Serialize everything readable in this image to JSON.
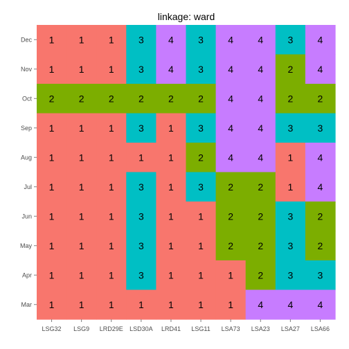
{
  "chart_data": {
    "type": "heatmap",
    "title": "linkage: ward",
    "xlabel": "",
    "ylabel": "",
    "grid": true,
    "x_categories": [
      "LSG32",
      "LSG9",
      "LRD29E",
      "LSD30A",
      "LRD41",
      "LSG11",
      "LSA73",
      "LSA23",
      "LSA27",
      "LSA66"
    ],
    "y_categories": [
      "Dec",
      "Nov",
      "Oct",
      "Sep",
      "Aug",
      "Jul",
      "Jun",
      "May",
      "Apr",
      "Mar"
    ],
    "values": [
      [
        1,
        1,
        1,
        3,
        4,
        3,
        4,
        4,
        3,
        4
      ],
      [
        1,
        1,
        1,
        3,
        4,
        3,
        4,
        4,
        2,
        4
      ],
      [
        2,
        2,
        2,
        2,
        2,
        2,
        4,
        4,
        2,
        2
      ],
      [
        1,
        1,
        1,
        3,
        1,
        3,
        4,
        4,
        3,
        3
      ],
      [
        1,
        1,
        1,
        1,
        1,
        2,
        4,
        4,
        1,
        4
      ],
      [
        1,
        1,
        1,
        3,
        1,
        3,
        2,
        2,
        1,
        4
      ],
      [
        1,
        1,
        1,
        3,
        1,
        1,
        2,
        2,
        3,
        2
      ],
      [
        1,
        1,
        1,
        3,
        1,
        1,
        2,
        2,
        3,
        2
      ],
      [
        1,
        1,
        1,
        3,
        1,
        1,
        1,
        2,
        3,
        3
      ],
      [
        1,
        1,
        1,
        1,
        1,
        1,
        1,
        4,
        4,
        4
      ]
    ],
    "cluster_colors": {
      "1": "#F8766D",
      "2": "#7CAE00",
      "3": "#00BFC4",
      "4": "#C77CFF"
    },
    "panel_background": "#ebebeb"
  }
}
